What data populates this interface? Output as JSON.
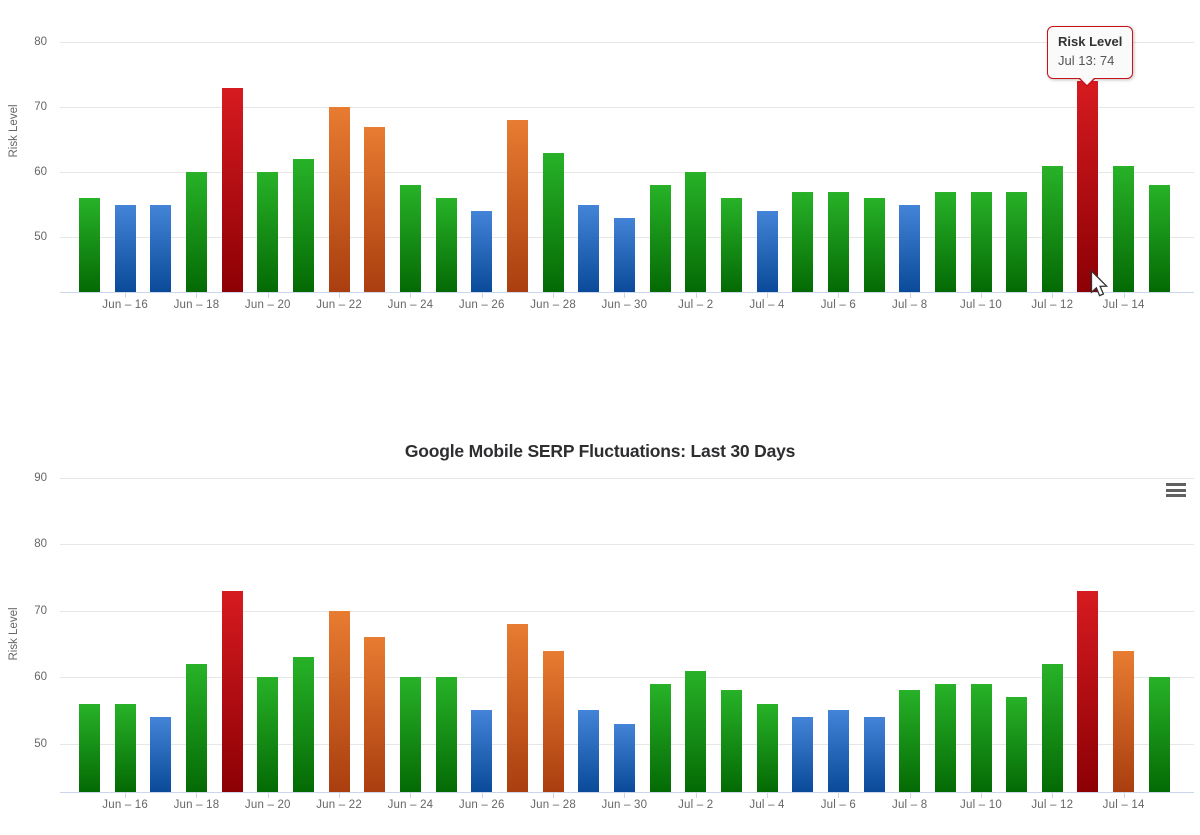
{
  "tooltip": {
    "header": "Risk Level",
    "body": "Jul 13: 74"
  },
  "icons": {
    "context_menu": "hamburger-icon",
    "pointer": "mouse-arrow-cursor"
  },
  "colors": {
    "grid": "#e6e6e6",
    "axis_line": "#ccd6eb",
    "axis_text": "#666666",
    "title_text": "#2e2e30",
    "tooltip_border": "#c81216",
    "bar_gradients": {
      "green": {
        "top": "#28b228",
        "bottom": "#046a04"
      },
      "blue": {
        "top": "#4384d8",
        "bottom": "#0a4a99"
      },
      "red": {
        "top": "#d61b20",
        "bottom": "#8c0004"
      },
      "orange": {
        "top": "#e87c31",
        "bottom": "#aa3e0f"
      }
    }
  },
  "chart_data": [
    {
      "type": "bar",
      "title": "",
      "ylabel": "Risk Level",
      "xlabel": "",
      "yticks": [
        50,
        60,
        70,
        80
      ],
      "ylim": [
        41.6,
        86.5
      ],
      "grid": "on",
      "legend": "none",
      "categories": [
        "Jun 15",
        "Jun 16",
        "Jun 17",
        "Jun 18",
        "Jun 19",
        "Jun 20",
        "Jun 21",
        "Jun 22",
        "Jun 23",
        "Jun 24",
        "Jun 25",
        "Jun 26",
        "Jun 27",
        "Jun 28",
        "Jun 29",
        "Jun 30",
        "Jul 1",
        "Jul 2",
        "Jul 3",
        "Jul 4",
        "Jul 5",
        "Jul 6",
        "Jul 7",
        "Jul 8",
        "Jul 9",
        "Jul 10",
        "Jul 11",
        "Jul 12",
        "Jul 13",
        "Jul 14",
        "Jul 15"
      ],
      "x_tick_labels": [
        "Jun – 16",
        "Jun – 18",
        "Jun – 20",
        "Jun – 22",
        "Jun – 24",
        "Jun – 26",
        "Jun – 28",
        "Jun – 30",
        "Jul – 2",
        "Jul – 4",
        "Jul – 6",
        "Jul – 8",
        "Jul – 10",
        "Jul – 12",
        "Jul – 14"
      ],
      "series": [
        {
          "name": "Risk Level",
          "values": [
            56,
            55,
            55,
            60,
            73,
            60,
            62,
            70,
            67,
            58,
            56,
            54,
            68,
            63,
            55,
            53,
            58,
            60,
            56,
            54,
            57,
            57,
            56,
            55,
            57,
            57,
            57,
            61,
            74,
            61,
            58
          ],
          "point_colors": [
            "green",
            "blue",
            "blue",
            "green",
            "red",
            "green",
            "green",
            "orange",
            "orange",
            "green",
            "green",
            "blue",
            "orange",
            "green",
            "blue",
            "blue",
            "green",
            "green",
            "green",
            "blue",
            "green",
            "green",
            "green",
            "blue",
            "green",
            "green",
            "green",
            "green",
            "red",
            "green",
            "green"
          ]
        }
      ],
      "hovered_point": {
        "category": "Jul 13",
        "value": 74
      }
    },
    {
      "type": "bar",
      "title": "Google Mobile SERP Fluctuations: Last 30 Days",
      "ylabel": "Risk Level",
      "xlabel": "",
      "yticks": [
        50,
        60,
        70,
        80,
        90
      ],
      "ylim": [
        42.8,
        90
      ],
      "grid": "on",
      "legend": "none",
      "categories": [
        "Jun 15",
        "Jun 16",
        "Jun 17",
        "Jun 18",
        "Jun 19",
        "Jun 20",
        "Jun 21",
        "Jun 22",
        "Jun 23",
        "Jun 24",
        "Jun 25",
        "Jun 26",
        "Jun 27",
        "Jun 28",
        "Jun 29",
        "Jun 30",
        "Jul 1",
        "Jul 2",
        "Jul 3",
        "Jul 4",
        "Jul 5",
        "Jul 6",
        "Jul 7",
        "Jul 8",
        "Jul 9",
        "Jul 10",
        "Jul 11",
        "Jul 12",
        "Jul 13",
        "Jul 14",
        "Jul 15"
      ],
      "x_tick_labels": [
        "Jun – 16",
        "Jun – 18",
        "Jun – 20",
        "Jun – 22",
        "Jun – 24",
        "Jun – 26",
        "Jun – 28",
        "Jun – 30",
        "Jul – 2",
        "Jul – 4",
        "Jul – 6",
        "Jul – 8",
        "Jul – 10",
        "Jul – 12",
        "Jul – 14"
      ],
      "series": [
        {
          "name": "Risk Level",
          "values": [
            56,
            56,
            54,
            62,
            73,
            60,
            63,
            70,
            66,
            60,
            60,
            55,
            68,
            64,
            55,
            53,
            59,
            61,
            58,
            56,
            54,
            55,
            54,
            58,
            59,
            59,
            57,
            62,
            73,
            64,
            60
          ],
          "point_colors": [
            "green",
            "green",
            "blue",
            "green",
            "red",
            "green",
            "green",
            "orange",
            "orange",
            "green",
            "green",
            "blue",
            "orange",
            "orange",
            "blue",
            "blue",
            "green",
            "green",
            "green",
            "green",
            "blue",
            "blue",
            "blue",
            "green",
            "green",
            "green",
            "green",
            "green",
            "red",
            "orange",
            "green"
          ]
        }
      ]
    }
  ]
}
